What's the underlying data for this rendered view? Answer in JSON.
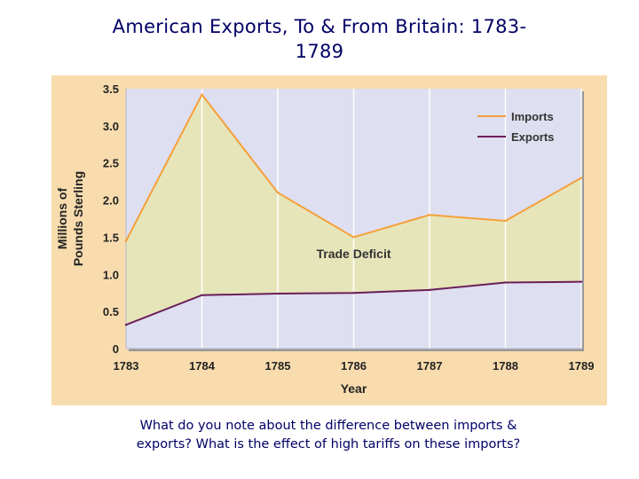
{
  "slide": {
    "title_line1": "American Exports, To & From Britain: 1783-",
    "title_line2": "1789",
    "caption_line1": "What do you note about the difference between imports &",
    "caption_line2": "exports?  What is the effect of high tariffs on these imports?"
  },
  "chart_data": {
    "type": "line",
    "x": [
      1783,
      1784,
      1785,
      1786,
      1787,
      1788,
      1789
    ],
    "series": [
      {
        "name": "Imports",
        "color": "#f5a03a",
        "values": [
          1.45,
          3.42,
          2.1,
          1.5,
          1.8,
          1.72,
          2.3
        ]
      },
      {
        "name": "Exports",
        "color": "#6a1e5a",
        "values": [
          0.32,
          0.72,
          0.74,
          0.75,
          0.79,
          0.89,
          0.9
        ]
      }
    ],
    "area_color": "#e6e5ba",
    "plot_background": "#dedff0",
    "xlabel": "Year",
    "ylabel_line1": "Millions of",
    "ylabel_line2": "Pounds Sterling",
    "ylim": [
      0,
      3.5
    ],
    "yticks": [
      "0",
      "0.5",
      "1.0",
      "1.5",
      "2.0",
      "2.5",
      "3.0",
      "3.5"
    ],
    "xticks": [
      "1783",
      "1784",
      "1785",
      "1786",
      "1787",
      "1788",
      "1789"
    ],
    "annotation": {
      "text": "Trade Deficit",
      "x": 1786,
      "y": 1.22
    },
    "grid": "vertical",
    "legend": "top-right"
  }
}
